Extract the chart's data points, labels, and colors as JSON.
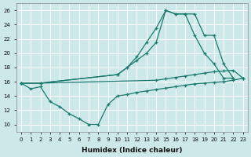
{
  "xlabel": "Humidex (Indice chaleur)",
  "bg_color": "#cce8e8",
  "line_color": "#1a7a6e",
  "grid_color": "#ffffff",
  "xlim": [
    -0.5,
    23.5
  ],
  "ylim": [
    9,
    27
  ],
  "xticks": [
    0,
    1,
    2,
    3,
    4,
    5,
    6,
    7,
    8,
    9,
    10,
    11,
    12,
    13,
    14,
    15,
    16,
    17,
    18,
    19,
    20,
    21,
    22,
    23
  ],
  "yticks": [
    10,
    12,
    14,
    16,
    18,
    20,
    22,
    24,
    26
  ],
  "curve1_x": [
    0,
    1,
    2,
    3,
    4,
    5,
    6,
    7,
    8,
    9,
    10,
    11,
    12,
    13,
    14,
    15,
    16,
    17,
    18,
    19,
    20,
    21,
    22,
    23
  ],
  "curve1_y": [
    15.8,
    15.0,
    15.3,
    13.2,
    12.5,
    11.5,
    10.8,
    10.0,
    10.0,
    12.8,
    14.0,
    14.2,
    14.5,
    14.7,
    14.9,
    15.1,
    15.3,
    15.5,
    15.7,
    15.8,
    15.9,
    16.0,
    16.2,
    16.5
  ],
  "curve2_x": [
    0,
    2,
    10,
    11,
    12,
    13,
    14,
    15,
    16,
    17,
    18,
    19,
    20,
    21,
    22
  ],
  "curve2_y": [
    15.8,
    15.8,
    17.0,
    18.0,
    19.0,
    20.0,
    21.5,
    26.0,
    25.5,
    25.5,
    25.5,
    22.5,
    22.5,
    18.5,
    16.5
  ],
  "curve3_x": [
    0,
    2,
    10,
    11,
    12,
    13,
    14,
    15,
    16,
    17,
    18,
    19,
    20,
    21,
    22
  ],
  "curve3_y": [
    15.8,
    15.8,
    17.0,
    18.0,
    19.5,
    21.5,
    23.5,
    26.0,
    25.5,
    25.5,
    22.5,
    20.0,
    18.5,
    16.5,
    16.5
  ],
  "curve4_x": [
    0,
    2,
    14,
    15,
    16,
    17,
    18,
    19,
    20,
    21,
    22,
    23
  ],
  "curve4_y": [
    15.8,
    15.8,
    16.2,
    16.4,
    16.6,
    16.8,
    17.0,
    17.2,
    17.4,
    17.5,
    17.6,
    16.5
  ]
}
